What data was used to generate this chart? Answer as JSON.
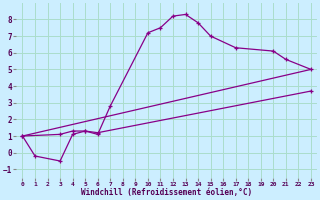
{
  "xlabel": "Windchill (Refroidissement éolien,°C)",
  "background_color": "#cceeff",
  "grid_color": "#aaddcc",
  "line_color": "#880088",
  "xlim": [
    -0.5,
    23.5
  ],
  "ylim": [
    -1.5,
    9.0
  ],
  "xticks": [
    0,
    1,
    2,
    3,
    4,
    5,
    6,
    7,
    8,
    9,
    10,
    11,
    12,
    13,
    14,
    15,
    16,
    17,
    18,
    19,
    20,
    21,
    22,
    23
  ],
  "yticks": [
    -1,
    0,
    1,
    2,
    3,
    4,
    5,
    6,
    7,
    8
  ],
  "line1_x": [
    0,
    1,
    3,
    4,
    5,
    6,
    7,
    10,
    11,
    12,
    13,
    14,
    15,
    17,
    20,
    21,
    23
  ],
  "line1_y": [
    1.0,
    -0.2,
    -0.5,
    1.1,
    1.3,
    1.1,
    2.8,
    7.2,
    7.5,
    8.2,
    8.3,
    7.8,
    7.0,
    6.3,
    6.1,
    5.6,
    5.0
  ],
  "line2_x": [
    0,
    3,
    4,
    5,
    6,
    23
  ],
  "line2_y": [
    1.0,
    1.1,
    1.3,
    1.3,
    1.2,
    3.7
  ],
  "line3_x": [
    0,
    23
  ],
  "line3_y": [
    1.0,
    5.0
  ]
}
